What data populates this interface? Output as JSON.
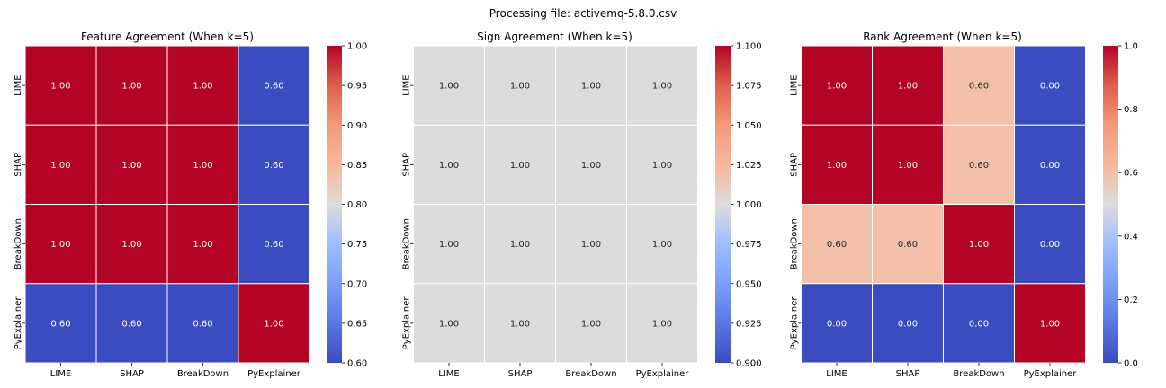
{
  "suptitle": "Processing file: activemq-5.8.0.csv",
  "labels": [
    "LIME",
    "SHAP",
    "BreakDown",
    "PyExplainer"
  ],
  "chart_data": [
    {
      "type": "heatmap",
      "title": "Feature Agreement (When k=5)",
      "x_categories": [
        "LIME",
        "SHAP",
        "BreakDown",
        "PyExplainer"
      ],
      "y_categories": [
        "LIME",
        "SHAP",
        "BreakDown",
        "PyExplainer"
      ],
      "values": [
        [
          1.0,
          1.0,
          1.0,
          0.6
        ],
        [
          1.0,
          1.0,
          1.0,
          0.6
        ],
        [
          1.0,
          1.0,
          1.0,
          0.6
        ],
        [
          0.6,
          0.6,
          0.6,
          1.0
        ]
      ],
      "annotations": [
        [
          "1.00",
          "1.00",
          "1.00",
          "0.60"
        ],
        [
          "1.00",
          "1.00",
          "1.00",
          "0.60"
        ],
        [
          "1.00",
          "1.00",
          "1.00",
          "0.60"
        ],
        [
          "0.60",
          "0.60",
          "0.60",
          "1.00"
        ]
      ],
      "colormap": "coolwarm",
      "vmin": 0.6,
      "vmax": 1.0,
      "colorbar_ticks": [
        "0.60",
        "0.65",
        "0.70",
        "0.75",
        "0.80",
        "0.85",
        "0.90",
        "0.95",
        "1.00"
      ]
    },
    {
      "type": "heatmap",
      "title": "Sign Agreement (When k=5)",
      "x_categories": [
        "LIME",
        "SHAP",
        "BreakDown",
        "PyExplainer"
      ],
      "y_categories": [
        "LIME",
        "SHAP",
        "BreakDown",
        "PyExplainer"
      ],
      "values": [
        [
          1.0,
          1.0,
          1.0,
          1.0
        ],
        [
          1.0,
          1.0,
          1.0,
          1.0
        ],
        [
          1.0,
          1.0,
          1.0,
          1.0
        ],
        [
          1.0,
          1.0,
          1.0,
          1.0
        ]
      ],
      "annotations": [
        [
          "1.00",
          "1.00",
          "1.00",
          "1.00"
        ],
        [
          "1.00",
          "1.00",
          "1.00",
          "1.00"
        ],
        [
          "1.00",
          "1.00",
          "1.00",
          "1.00"
        ],
        [
          "1.00",
          "1.00",
          "1.00",
          "1.00"
        ]
      ],
      "colormap": "coolwarm",
      "vmin": 0.9,
      "vmax": 1.1,
      "colorbar_ticks": [
        "0.900",
        "0.925",
        "0.950",
        "0.975",
        "1.000",
        "1.025",
        "1.050",
        "1.075",
        "1.100"
      ]
    },
    {
      "type": "heatmap",
      "title": "Rank Agreement (When k=5)",
      "x_categories": [
        "LIME",
        "SHAP",
        "BreakDown",
        "PyExplainer"
      ],
      "y_categories": [
        "LIME",
        "SHAP",
        "BreakDown",
        "PyExplainer"
      ],
      "values": [
        [
          1.0,
          1.0,
          0.6,
          0.0
        ],
        [
          1.0,
          1.0,
          0.6,
          0.0
        ],
        [
          0.6,
          0.6,
          1.0,
          0.0
        ],
        [
          0.0,
          0.0,
          0.0,
          1.0
        ]
      ],
      "annotations": [
        [
          "1.00",
          "1.00",
          "0.60",
          "0.00"
        ],
        [
          "1.00",
          "1.00",
          "0.60",
          "0.00"
        ],
        [
          "0.60",
          "0.60",
          "1.00",
          "0.00"
        ],
        [
          "0.00",
          "0.00",
          "0.00",
          "1.00"
        ]
      ],
      "colormap": "coolwarm",
      "vmin": 0.0,
      "vmax": 1.0,
      "colorbar_ticks": [
        "0.0",
        "0.2",
        "0.4",
        "0.6",
        "0.8",
        "1.0"
      ]
    }
  ]
}
